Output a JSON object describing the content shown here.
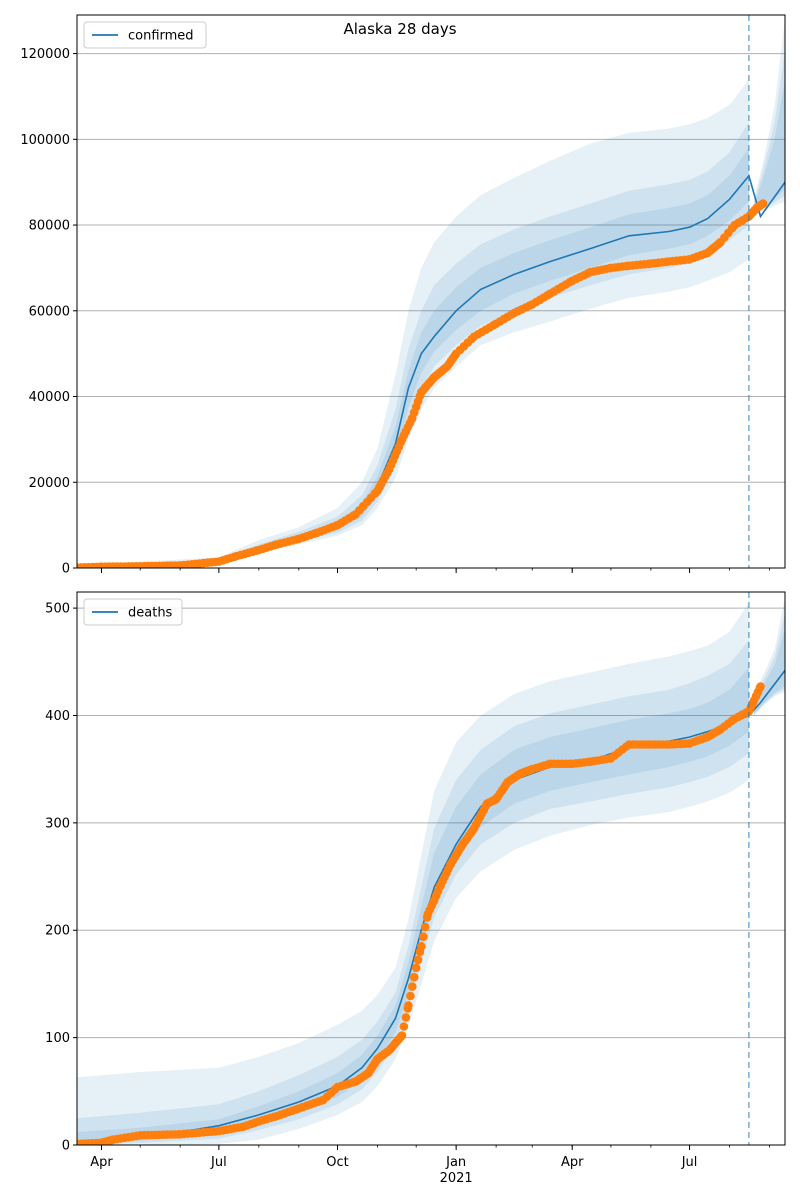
{
  "figure": {
    "suptitle": "Alaska 28 days"
  },
  "colors": {
    "model_line": "#1f77b4",
    "observed": "#ff7f0e",
    "band": "#1f77b4",
    "grid": "#b0b0b0",
    "vline": "#1f77b4"
  },
  "chart_data": [
    {
      "type": "line",
      "title": "Alaska 28 days",
      "legend": {
        "label": "confirmed",
        "placement": "top-left"
      },
      "xlabel": "",
      "ylabel": "",
      "x_range": [
        "2020-03-13",
        "2021-09-13"
      ],
      "x_ticks": [
        {
          "date": "2020-04-01",
          "label": "Apr"
        },
        {
          "date": "2020-07-01",
          "label": "Jul"
        },
        {
          "date": "2020-10-01",
          "label": "Oct"
        },
        {
          "date": "2021-01-01",
          "label": "Jan"
        },
        {
          "date": "2021-04-01",
          "label": "Apr"
        },
        {
          "date": "2021-07-01",
          "label": "Jul"
        }
      ],
      "x_year_label": "2021",
      "ylim": [
        0,
        129000
      ],
      "yticks": [
        0,
        20000,
        40000,
        60000,
        80000,
        100000,
        120000
      ],
      "grid": "y",
      "forecast_start": "2021-08-16",
      "model_line": {
        "x": [
          "2020-03-13",
          "2020-05-01",
          "2020-06-01",
          "2020-07-01",
          "2020-08-01",
          "2020-09-01",
          "2020-10-01",
          "2020-10-20",
          "2020-11-01",
          "2020-11-15",
          "2020-11-25",
          "2020-12-05",
          "2020-12-15",
          "2021-01-01",
          "2021-01-20",
          "2021-02-15",
          "2021-03-15",
          "2021-04-15",
          "2021-05-15",
          "2021-06-15",
          "2021-07-01",
          "2021-07-15",
          "2021-08-01",
          "2021-08-16",
          "2021-08-25",
          "2021-09-13"
        ],
        "y": [
          300,
          500,
          700,
          1500,
          4500,
          7000,
          9500,
          13000,
          19000,
          29000,
          42000,
          50000,
          54000,
          60000,
          65000,
          68500,
          71500,
          74500,
          77500,
          78500,
          79500,
          81500,
          86000,
          91500,
          82000,
          90000
        ]
      },
      "bands": [
        {
          "name": "outer",
          "x": [
            "2020-03-13",
            "2020-07-01",
            "2020-08-01",
            "2020-09-01",
            "2020-10-01",
            "2020-10-20",
            "2020-11-01",
            "2020-11-15",
            "2020-11-25",
            "2020-12-05",
            "2020-12-15",
            "2021-01-01",
            "2021-01-20",
            "2021-02-15",
            "2021-03-15",
            "2021-04-15",
            "2021-05-15",
            "2021-06-15",
            "2021-07-01",
            "2021-07-15",
            "2021-08-01",
            "2021-08-16"
          ],
          "upper": [
            600,
            2500,
            6500,
            9500,
            14000,
            20000,
            28000,
            45000,
            60000,
            70000,
            76000,
            82000,
            87000,
            91000,
            95000,
            99000,
            101500,
            102500,
            103500,
            105000,
            108000,
            114000
          ],
          "lower": [
            100,
            900,
            3500,
            5500,
            7500,
            10000,
            14000,
            21000,
            30000,
            37000,
            42000,
            47000,
            52000,
            55000,
            57500,
            60500,
            63000,
            64500,
            65500,
            67000,
            69000,
            72000
          ]
        },
        {
          "name": "middle",
          "x": [
            "2020-03-13",
            "2020-07-01",
            "2020-08-01",
            "2020-09-01",
            "2020-10-01",
            "2020-10-20",
            "2020-11-01",
            "2020-11-15",
            "2020-11-25",
            "2020-12-05",
            "2020-12-15",
            "2021-01-01",
            "2021-01-20",
            "2021-02-15",
            "2021-03-15",
            "2021-04-15",
            "2021-05-15",
            "2021-06-15",
            "2021-07-01",
            "2021-07-15",
            "2021-08-01",
            "2021-08-16"
          ],
          "upper": [
            500,
            2000,
            5500,
            8500,
            12000,
            17000,
            24000,
            37000,
            51000,
            60000,
            66000,
            71000,
            75500,
            79000,
            82000,
            85000,
            88000,
            89500,
            90500,
            92500,
            97000,
            104000
          ],
          "lower": [
            150,
            1100,
            4000,
            6200,
            8200,
            11000,
            15500,
            24000,
            34000,
            42000,
            47000,
            52000,
            56500,
            60000,
            63000,
            66000,
            68500,
            70000,
            71000,
            73000,
            76500,
            80000
          ]
        },
        {
          "name": "inner",
          "x": [
            "2020-03-13",
            "2020-07-01",
            "2020-08-01",
            "2020-09-01",
            "2020-10-01",
            "2020-10-20",
            "2020-11-01",
            "2020-11-15",
            "2020-11-25",
            "2020-12-05",
            "2020-12-15",
            "2021-01-01",
            "2021-01-20",
            "2021-02-15",
            "2021-03-15",
            "2021-04-15",
            "2021-05-15",
            "2021-06-15",
            "2021-07-01",
            "2021-07-15",
            "2021-08-01",
            "2021-08-16"
          ],
          "upper": [
            400,
            1700,
            5000,
            7800,
            10800,
            15000,
            21500,
            33000,
            46000,
            55000,
            60000,
            65500,
            70000,
            73500,
            76500,
            79500,
            82500,
            84000,
            85000,
            87000,
            91500,
            98000
          ],
          "lower": [
            200,
            1300,
            4200,
            6700,
            8800,
            12000,
            17000,
            26000,
            37500,
            45500,
            50500,
            55500,
            60000,
            64000,
            67000,
            70000,
            73000,
            74500,
            75500,
            77500,
            81000,
            85500
          ]
        }
      ],
      "forecast_band": {
        "x": [
          "2021-08-20",
          "2021-08-28",
          "2021-09-05",
          "2021-09-13"
        ],
        "upper": [
          86000,
          96000,
          108000,
          128000
        ],
        "lower": [
          82000,
          83500,
          84500,
          85500
        ]
      },
      "observed": {
        "x": [
          "2020-03-13",
          "2020-04-01",
          "2020-05-01",
          "2020-06-01",
          "2020-07-01",
          "2020-07-15",
          "2020-08-01",
          "2020-08-15",
          "2020-09-01",
          "2020-09-15",
          "2020-10-01",
          "2020-10-15",
          "2020-11-01",
          "2020-11-10",
          "2020-11-20",
          "2020-11-28",
          "2020-12-05",
          "2020-12-15",
          "2020-12-25",
          "2021-01-01",
          "2021-01-15",
          "2021-02-01",
          "2021-02-15",
          "2021-03-01",
          "2021-03-15",
          "2021-04-01",
          "2021-04-15",
          "2021-05-01",
          "2021-05-15",
          "2021-06-01",
          "2021-06-15",
          "2021-07-01",
          "2021-07-15",
          "2021-07-25",
          "2021-08-05",
          "2021-08-16",
          "2021-08-22",
          "2021-08-27"
        ],
        "y": [
          100,
          300,
          400,
          600,
          1500,
          2800,
          4200,
          5500,
          6800,
          8200,
          10000,
          12500,
          18000,
          23000,
          30000,
          35000,
          41000,
          44500,
          47000,
          50000,
          54000,
          57000,
          59500,
          61500,
          64000,
          67000,
          69000,
          70000,
          70500,
          71000,
          71500,
          72000,
          73500,
          76000,
          80000,
          82000,
          84000,
          85000
        ]
      }
    },
    {
      "type": "line",
      "title": "",
      "legend": {
        "label": "deaths",
        "placement": "top-left"
      },
      "xlabel": "",
      "ylabel": "",
      "x_range": [
        "2020-03-13",
        "2021-09-13"
      ],
      "x_ticks": [
        {
          "date": "2020-04-01",
          "label": "Apr"
        },
        {
          "date": "2020-07-01",
          "label": "Jul"
        },
        {
          "date": "2020-10-01",
          "label": "Oct"
        },
        {
          "date": "2021-01-01",
          "label": "Jan"
        },
        {
          "date": "2021-04-01",
          "label": "Apr"
        },
        {
          "date": "2021-07-01",
          "label": "Jul"
        }
      ],
      "x_year_label": "2021",
      "ylim": [
        0,
        515
      ],
      "yticks": [
        0,
        100,
        200,
        300,
        400,
        500
      ],
      "grid": "y",
      "forecast_start": "2021-08-16",
      "model_line": {
        "x": [
          "2020-03-13",
          "2020-05-01",
          "2020-06-01",
          "2020-07-01",
          "2020-08-01",
          "2020-09-01",
          "2020-10-01",
          "2020-10-20",
          "2020-11-01",
          "2020-11-15",
          "2020-11-25",
          "2020-12-05",
          "2020-12-15",
          "2021-01-01",
          "2021-01-20",
          "2021-02-15",
          "2021-03-15",
          "2021-04-15",
          "2021-05-15",
          "2021-06-15",
          "2021-07-01",
          "2021-07-15",
          "2021-08-01",
          "2021-08-16",
          "2021-08-25",
          "2021-09-13"
        ],
        "y": [
          3,
          8,
          12,
          18,
          28,
          40,
          55,
          72,
          90,
          118,
          155,
          200,
          240,
          280,
          315,
          340,
          352,
          358,
          370,
          376,
          380,
          385,
          392,
          400,
          412,
          442
        ]
      },
      "bands": [
        {
          "name": "outer",
          "x": [
            "2020-03-13",
            "2020-05-01",
            "2020-07-01",
            "2020-08-01",
            "2020-09-01",
            "2020-10-01",
            "2020-10-20",
            "2020-11-01",
            "2020-11-15",
            "2020-11-25",
            "2020-12-05",
            "2020-12-15",
            "2021-01-01",
            "2021-01-20",
            "2021-02-15",
            "2021-03-15",
            "2021-04-15",
            "2021-05-15",
            "2021-06-15",
            "2021-07-01",
            "2021-07-15",
            "2021-08-01",
            "2021-08-16"
          ],
          "upper": [
            63,
            68,
            72,
            82,
            95,
            112,
            125,
            140,
            165,
            210,
            270,
            330,
            375,
            400,
            420,
            432,
            440,
            448,
            455,
            460,
            465,
            478,
            505
          ],
          "lower": [
            0,
            0,
            1,
            5,
            15,
            28,
            40,
            55,
            80,
            110,
            150,
            190,
            230,
            255,
            275,
            288,
            298,
            305,
            310,
            315,
            320,
            328,
            340
          ]
        },
        {
          "name": "middle",
          "x": [
            "2020-03-13",
            "2020-05-01",
            "2020-07-01",
            "2020-08-01",
            "2020-09-01",
            "2020-10-01",
            "2020-10-20",
            "2020-11-01",
            "2020-11-15",
            "2020-11-25",
            "2020-12-05",
            "2020-12-15",
            "2021-01-01",
            "2021-01-20",
            "2021-02-15",
            "2021-03-15",
            "2021-04-15",
            "2021-05-15",
            "2021-06-15",
            "2021-07-01",
            "2021-07-15",
            "2021-08-01",
            "2021-08-16"
          ],
          "upper": [
            25,
            30,
            38,
            50,
            65,
            82,
            98,
            115,
            142,
            185,
            240,
            295,
            340,
            368,
            390,
            402,
            410,
            418,
            424,
            430,
            437,
            448,
            470
          ],
          "lower": [
            0,
            2,
            6,
            14,
            24,
            38,
            52,
            68,
            95,
            128,
            170,
            212,
            252,
            280,
            300,
            313,
            320,
            327,
            333,
            338,
            343,
            352,
            365
          ]
        },
        {
          "name": "inner",
          "x": [
            "2020-03-13",
            "2020-05-01",
            "2020-07-01",
            "2020-08-01",
            "2020-09-01",
            "2020-10-01",
            "2020-10-20",
            "2020-11-01",
            "2020-11-15",
            "2020-11-25",
            "2020-12-05",
            "2020-12-15",
            "2021-01-01",
            "2021-01-20",
            "2021-02-15",
            "2021-03-15",
            "2021-04-15",
            "2021-05-15",
            "2021-06-15",
            "2021-07-01",
            "2021-07-15",
            "2021-08-01",
            "2021-08-16"
          ],
          "upper": [
            12,
            16,
            24,
            36,
            50,
            67,
            84,
            102,
            130,
            170,
            222,
            272,
            315,
            345,
            368,
            380,
            388,
            396,
            402,
            406,
            412,
            424,
            445
          ],
          "lower": [
            0,
            4,
            10,
            20,
            31,
            45,
            60,
            78,
            105,
            140,
            182,
            226,
            268,
            296,
            318,
            330,
            338,
            345,
            352,
            357,
            362,
            372,
            385
          ]
        }
      ],
      "forecast_band": {
        "x": [
          "2021-08-20",
          "2021-08-28",
          "2021-09-05",
          "2021-09-13"
        ],
        "upper": [
          420,
          440,
          462,
          510
        ],
        "lower": [
          400,
          410,
          418,
          422
        ]
      },
      "observed": {
        "x": [
          "2020-03-13",
          "2020-04-01",
          "2020-04-10",
          "2020-05-01",
          "2020-06-01",
          "2020-07-01",
          "2020-07-20",
          "2020-08-01",
          "2020-08-15",
          "2020-09-01",
          "2020-09-20",
          "2020-10-01",
          "2020-10-15",
          "2020-10-25",
          "2020-11-01",
          "2020-11-10",
          "2020-11-20",
          "2020-11-25",
          "2020-12-01",
          "2020-12-05",
          "2020-12-10",
          "2020-12-15",
          "2020-12-20",
          "2020-12-28",
          "2021-01-05",
          "2021-01-15",
          "2021-01-25",
          "2021-02-01",
          "2021-02-10",
          "2021-02-20",
          "2021-03-01",
          "2021-03-15",
          "2021-04-01",
          "2021-04-15",
          "2021-05-01",
          "2021-05-15",
          "2021-06-01",
          "2021-06-15",
          "2021-07-01",
          "2021-07-15",
          "2021-07-25",
          "2021-08-05",
          "2021-08-16",
          "2021-08-20",
          "2021-08-25"
        ],
        "y": [
          1,
          2,
          5,
          9,
          10,
          13,
          17,
          22,
          27,
          34,
          42,
          54,
          59,
          67,
          80,
          88,
          102,
          130,
          165,
          185,
          215,
          228,
          242,
          262,
          278,
          295,
          318,
          322,
          338,
          346,
          350,
          355,
          355,
          357,
          360,
          373,
          373,
          373,
          374,
          380,
          387,
          397,
          404,
          414,
          427
        ]
      }
    }
  ]
}
